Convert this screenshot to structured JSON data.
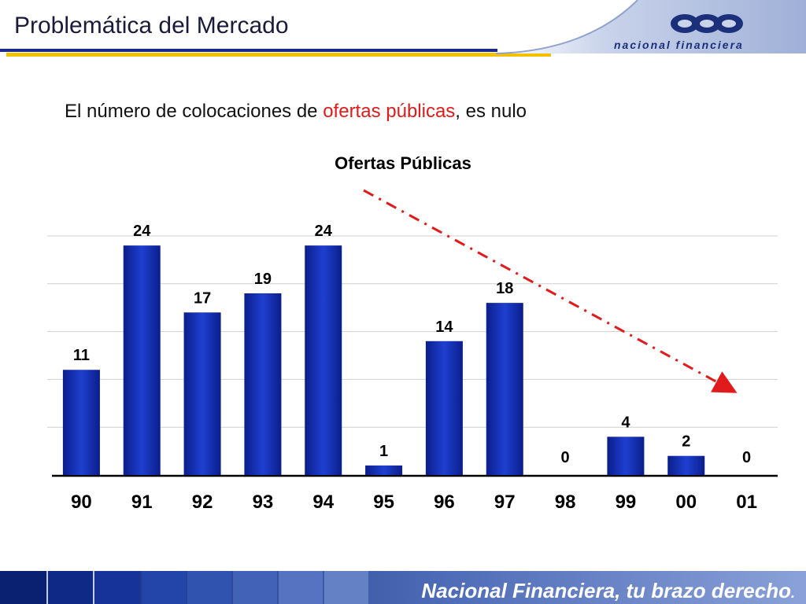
{
  "header": {
    "title": "Problemática del Mercado",
    "logo_text": "nacional financiera"
  },
  "subtitle": {
    "prefix": "El número de colocaciones de ",
    "highlight": "ofertas públicas",
    "suffix": ", es nulo"
  },
  "footer": {
    "tagline": "Nacional Financiera, tu brazo derecho",
    "tagline_end": "."
  },
  "colors": {
    "bar": "#1530b8",
    "trend": "#e11b1b",
    "title_rule": "#1b2a8c",
    "accent_yellow": "#f2c200",
    "footer_dark": "#0c2478",
    "footer_light": "#7a93d1"
  },
  "chart_data": {
    "type": "bar",
    "title": "Ofertas Públicas",
    "categories": [
      "90",
      "91",
      "92",
      "93",
      "94",
      "95",
      "96",
      "97",
      "98",
      "99",
      "00",
      "01"
    ],
    "values": [
      11,
      24,
      17,
      19,
      24,
      1,
      14,
      18,
      0,
      4,
      2,
      0
    ],
    "ylim": [
      0,
      25
    ],
    "grid": true,
    "legend": "none",
    "annotation": "dashed red downward trend arrow"
  }
}
